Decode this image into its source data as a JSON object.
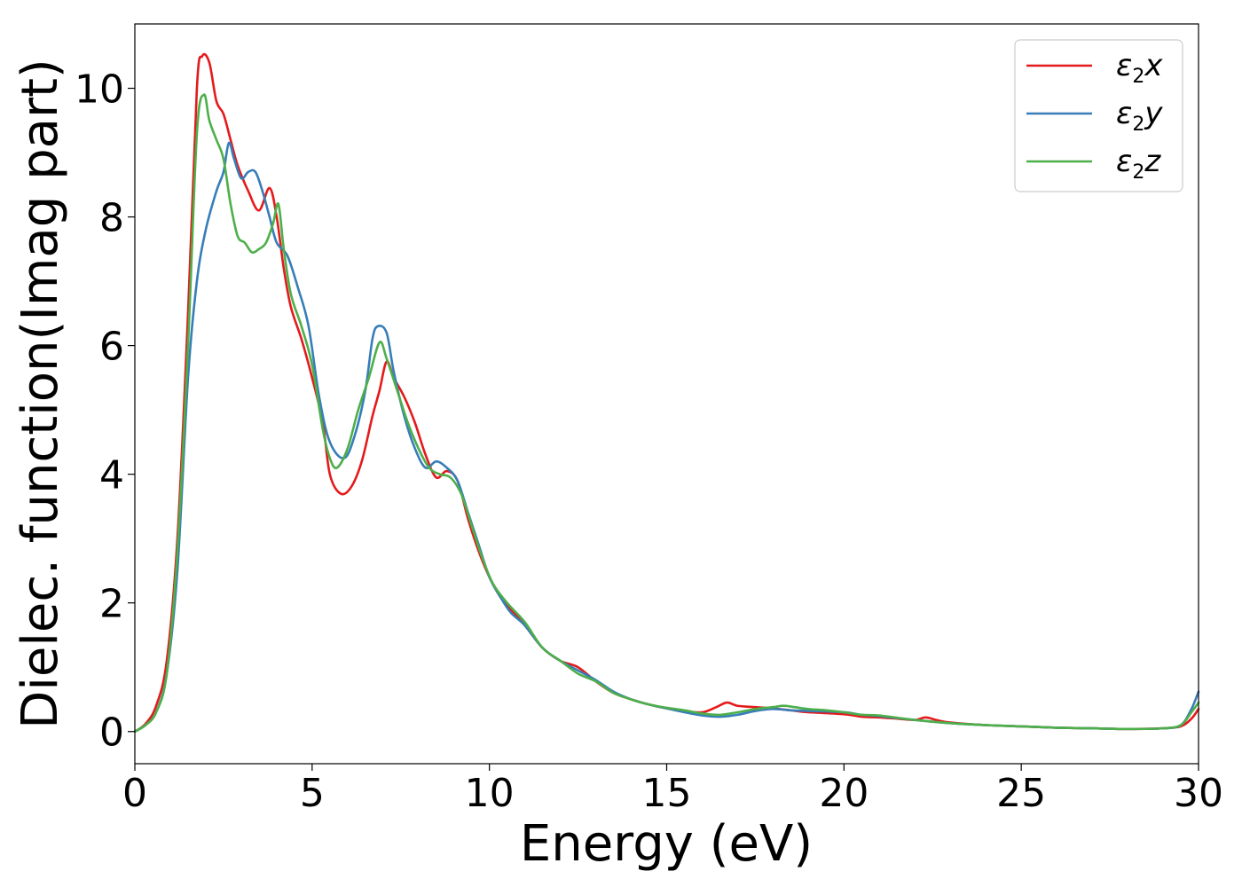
{
  "chart_data": {
    "type": "line",
    "xlabel": "Energy (eV)",
    "ylabel": "Dielec. function(Imag part)",
    "xlim": [
      0,
      30
    ],
    "ylim": [
      -0.5,
      11.0
    ],
    "xticks": [
      0,
      5,
      10,
      15,
      20,
      25,
      30
    ],
    "yticks": [
      0,
      2,
      4,
      6,
      8,
      10
    ],
    "grid": false,
    "legend_position": "top-right",
    "series": [
      {
        "name": "ε2x",
        "legend": {
          "base": "ε",
          "sub": "2",
          "var": "x"
        },
        "color": "#e41a1c",
        "points": [
          [
            0,
            0
          ],
          [
            0.3,
            0.12
          ],
          [
            0.6,
            0.4
          ],
          [
            0.9,
            1.1
          ],
          [
            1.2,
            3.0
          ],
          [
            1.5,
            6.5
          ],
          [
            1.75,
            10.0
          ],
          [
            1.9,
            10.5
          ],
          [
            2.1,
            10.4
          ],
          [
            2.3,
            9.8
          ],
          [
            2.5,
            9.6
          ],
          [
            2.7,
            9.2
          ],
          [
            2.9,
            8.8
          ],
          [
            3.2,
            8.4
          ],
          [
            3.5,
            8.1
          ],
          [
            3.8,
            8.45
          ],
          [
            4.0,
            8.0
          ],
          [
            4.2,
            7.2
          ],
          [
            4.4,
            6.6
          ],
          [
            4.7,
            6.1
          ],
          [
            5.0,
            5.5
          ],
          [
            5.3,
            4.8
          ],
          [
            5.5,
            4.0
          ],
          [
            5.8,
            3.7
          ],
          [
            6.1,
            3.8
          ],
          [
            6.4,
            4.2
          ],
          [
            6.7,
            4.9
          ],
          [
            6.9,
            5.3
          ],
          [
            7.1,
            5.75
          ],
          [
            7.3,
            5.5
          ],
          [
            7.6,
            5.2
          ],
          [
            7.9,
            4.8
          ],
          [
            8.2,
            4.3
          ],
          [
            8.5,
            3.95
          ],
          [
            8.8,
            4.05
          ],
          [
            9.1,
            3.9
          ],
          [
            9.4,
            3.3
          ],
          [
            9.7,
            2.8
          ],
          [
            10.0,
            2.4
          ],
          [
            10.3,
            2.1
          ],
          [
            10.6,
            1.9
          ],
          [
            11.0,
            1.65
          ],
          [
            11.5,
            1.3
          ],
          [
            12.0,
            1.1
          ],
          [
            12.5,
            1.0
          ],
          [
            13.0,
            0.78
          ],
          [
            13.5,
            0.6
          ],
          [
            14.0,
            0.5
          ],
          [
            14.5,
            0.42
          ],
          [
            15.0,
            0.36
          ],
          [
            15.5,
            0.32
          ],
          [
            16.0,
            0.3
          ],
          [
            16.4,
            0.38
          ],
          [
            16.7,
            0.45
          ],
          [
            17.0,
            0.4
          ],
          [
            17.5,
            0.38
          ],
          [
            18.0,
            0.36
          ],
          [
            18.5,
            0.33
          ],
          [
            19.0,
            0.3
          ],
          [
            20.0,
            0.27
          ],
          [
            20.5,
            0.23
          ],
          [
            21.0,
            0.22
          ],
          [
            21.5,
            0.2
          ],
          [
            22.0,
            0.18
          ],
          [
            22.3,
            0.22
          ],
          [
            22.6,
            0.18
          ],
          [
            23.0,
            0.14
          ],
          [
            24.0,
            0.1
          ],
          [
            25.0,
            0.08
          ],
          [
            26.0,
            0.06
          ],
          [
            27.0,
            0.05
          ],
          [
            28.0,
            0.04
          ],
          [
            29.0,
            0.05
          ],
          [
            29.5,
            0.08
          ],
          [
            29.8,
            0.2
          ],
          [
            30.0,
            0.35
          ]
        ]
      },
      {
        "name": "ε2y",
        "legend": {
          "base": "ε",
          "sub": "2",
          "var": "y"
        },
        "color": "#377eb8",
        "points": [
          [
            0,
            0
          ],
          [
            0.3,
            0.1
          ],
          [
            0.6,
            0.3
          ],
          [
            0.9,
            0.9
          ],
          [
            1.2,
            2.5
          ],
          [
            1.5,
            5.5
          ],
          [
            1.75,
            7.0
          ],
          [
            2.0,
            7.8
          ],
          [
            2.3,
            8.4
          ],
          [
            2.5,
            8.7
          ],
          [
            2.65,
            9.15
          ],
          [
            2.8,
            8.9
          ],
          [
            3.0,
            8.6
          ],
          [
            3.2,
            8.7
          ],
          [
            3.4,
            8.7
          ],
          [
            3.6,
            8.4
          ],
          [
            3.8,
            8.0
          ],
          [
            4.0,
            7.6
          ],
          [
            4.3,
            7.4
          ],
          [
            4.6,
            6.9
          ],
          [
            4.9,
            6.3
          ],
          [
            5.2,
            5.2
          ],
          [
            5.5,
            4.5
          ],
          [
            5.9,
            4.25
          ],
          [
            6.2,
            4.6
          ],
          [
            6.5,
            5.3
          ],
          [
            6.7,
            6.1
          ],
          [
            6.85,
            6.3
          ],
          [
            7.1,
            6.2
          ],
          [
            7.3,
            5.6
          ],
          [
            7.6,
            4.9
          ],
          [
            7.9,
            4.4
          ],
          [
            8.2,
            4.1
          ],
          [
            8.5,
            4.2
          ],
          [
            8.8,
            4.1
          ],
          [
            9.1,
            3.9
          ],
          [
            9.4,
            3.4
          ],
          [
            9.7,
            2.9
          ],
          [
            10.0,
            2.4
          ],
          [
            10.3,
            2.1
          ],
          [
            10.6,
            1.85
          ],
          [
            11.0,
            1.65
          ],
          [
            11.5,
            1.3
          ],
          [
            12.0,
            1.1
          ],
          [
            12.5,
            0.95
          ],
          [
            13.0,
            0.8
          ],
          [
            13.5,
            0.62
          ],
          [
            14.0,
            0.5
          ],
          [
            14.5,
            0.42
          ],
          [
            15.0,
            0.36
          ],
          [
            15.5,
            0.3
          ],
          [
            16.0,
            0.25
          ],
          [
            16.5,
            0.23
          ],
          [
            17.0,
            0.26
          ],
          [
            17.5,
            0.32
          ],
          [
            18.0,
            0.35
          ],
          [
            18.5,
            0.33
          ],
          [
            19.0,
            0.32
          ],
          [
            20.0,
            0.3
          ],
          [
            20.5,
            0.26
          ],
          [
            21.0,
            0.24
          ],
          [
            22.0,
            0.18
          ],
          [
            23.0,
            0.13
          ],
          [
            24.0,
            0.1
          ],
          [
            25.0,
            0.08
          ],
          [
            26.0,
            0.06
          ],
          [
            27.0,
            0.05
          ],
          [
            28.0,
            0.04
          ],
          [
            29.0,
            0.05
          ],
          [
            29.5,
            0.1
          ],
          [
            29.8,
            0.35
          ],
          [
            30.0,
            0.62
          ]
        ]
      },
      {
        "name": "ε2z",
        "legend": {
          "base": "ε",
          "sub": "2",
          "var": "z"
        },
        "color": "#4daf4a",
        "points": [
          [
            0,
            0
          ],
          [
            0.3,
            0.1
          ],
          [
            0.6,
            0.3
          ],
          [
            0.9,
            0.9
          ],
          [
            1.2,
            2.8
          ],
          [
            1.5,
            6.0
          ],
          [
            1.75,
            9.3
          ],
          [
            1.95,
            9.9
          ],
          [
            2.1,
            9.5
          ],
          [
            2.3,
            9.2
          ],
          [
            2.5,
            8.9
          ],
          [
            2.7,
            8.2
          ],
          [
            2.9,
            7.7
          ],
          [
            3.1,
            7.6
          ],
          [
            3.3,
            7.45
          ],
          [
            3.5,
            7.5
          ],
          [
            3.7,
            7.6
          ],
          [
            3.9,
            7.9
          ],
          [
            4.05,
            8.2
          ],
          [
            4.2,
            7.5
          ],
          [
            4.4,
            6.8
          ],
          [
            4.7,
            6.3
          ],
          [
            5.0,
            5.7
          ],
          [
            5.3,
            4.7
          ],
          [
            5.5,
            4.25
          ],
          [
            5.7,
            4.1
          ],
          [
            6.0,
            4.4
          ],
          [
            6.3,
            5.0
          ],
          [
            6.6,
            5.5
          ],
          [
            6.9,
            6.05
          ],
          [
            7.1,
            5.8
          ],
          [
            7.4,
            5.3
          ],
          [
            7.7,
            4.8
          ],
          [
            8.0,
            4.4
          ],
          [
            8.3,
            4.1
          ],
          [
            8.6,
            4.0
          ],
          [
            8.9,
            3.95
          ],
          [
            9.2,
            3.7
          ],
          [
            9.5,
            3.2
          ],
          [
            9.8,
            2.7
          ],
          [
            10.1,
            2.3
          ],
          [
            10.5,
            2.0
          ],
          [
            11.0,
            1.7
          ],
          [
            11.5,
            1.3
          ],
          [
            12.0,
            1.1
          ],
          [
            12.5,
            0.9
          ],
          [
            13.0,
            0.78
          ],
          [
            13.5,
            0.6
          ],
          [
            14.0,
            0.5
          ],
          [
            14.5,
            0.42
          ],
          [
            15.0,
            0.37
          ],
          [
            15.5,
            0.33
          ],
          [
            16.0,
            0.28
          ],
          [
            16.5,
            0.26
          ],
          [
            17.0,
            0.3
          ],
          [
            17.5,
            0.35
          ],
          [
            18.0,
            0.38
          ],
          [
            18.3,
            0.4
          ],
          [
            18.6,
            0.38
          ],
          [
            19.0,
            0.35
          ],
          [
            19.5,
            0.33
          ],
          [
            20.0,
            0.3
          ],
          [
            20.5,
            0.26
          ],
          [
            21.0,
            0.25
          ],
          [
            22.0,
            0.18
          ],
          [
            23.0,
            0.13
          ],
          [
            24.0,
            0.1
          ],
          [
            25.0,
            0.08
          ],
          [
            26.0,
            0.06
          ],
          [
            27.0,
            0.05
          ],
          [
            28.0,
            0.04
          ],
          [
            29.0,
            0.05
          ],
          [
            29.5,
            0.1
          ],
          [
            29.8,
            0.3
          ],
          [
            30.0,
            0.45
          ]
        ]
      }
    ]
  }
}
